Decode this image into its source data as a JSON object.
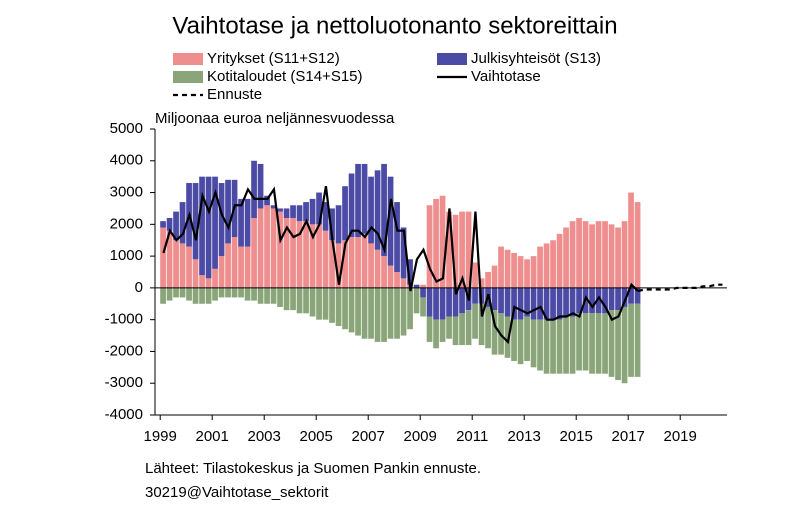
{
  "chart_data": {
    "type": "bar",
    "stacked": true,
    "title": "Vaihtotase ja nettoluotonanto sektoreittain",
    "y_label": "Miljoonaa  euroa  neljännesvuodessa",
    "source": "Lähteet: Tilastokeskus ja Suomen Pankin ennuste.",
    "code": "30219@Vaihtotase_sektorit",
    "xlim": [
      1998.8,
      2020.8
    ],
    "xticks": [
      1999,
      2001,
      2003,
      2005,
      2007,
      2009,
      2011,
      2013,
      2015,
      2017,
      2019
    ],
    "ylim": [
      -4000,
      5000
    ],
    "yticks": [
      -4000,
      -3000,
      -2000,
      -1000,
      0,
      1000,
      2000,
      3000,
      4000,
      5000
    ],
    "x": [
      1999,
      1999.25,
      1999.5,
      1999.75,
      2000,
      2000.25,
      2000.5,
      2000.75,
      2001,
      2001.25,
      2001.5,
      2001.75,
      2002,
      2002.25,
      2002.5,
      2002.75,
      2003,
      2003.25,
      2003.5,
      2003.75,
      2004,
      2004.25,
      2004.5,
      2004.75,
      2005,
      2005.25,
      2005.5,
      2005.75,
      2006,
      2006.25,
      2006.5,
      2006.75,
      2007,
      2007.25,
      2007.5,
      2007.75,
      2008,
      2008.25,
      2008.5,
      2008.75,
      2009,
      2009.25,
      2009.5,
      2009.75,
      2010,
      2010.25,
      2010.5,
      2010.75,
      2011,
      2011.25,
      2011.5,
      2011.75,
      2012,
      2012.25,
      2012.5,
      2012.75,
      2013,
      2013.25,
      2013.5,
      2013.75,
      2014,
      2014.25,
      2014.5,
      2014.75,
      2015,
      2015.25,
      2015.5,
      2015.75,
      2016,
      2016.25,
      2016.5,
      2016.75,
      2017,
      2017.25,
      2017.5,
      2017.75,
      2018,
      2018.25,
      2018.5,
      2018.75,
      2019,
      2019.25,
      2019.5,
      2019.75,
      2020,
      2020.25,
      2020.5
    ],
    "series": [
      {
        "name": "Yritykset (S11+S12)",
        "kind": "bar",
        "color": "#ef8e8e",
        "values": [
          1900,
          1800,
          1500,
          1400,
          1300,
          900,
          400,
          300,
          600,
          1000,
          1400,
          1600,
          1300,
          1300,
          2200,
          2500,
          2600,
          2500,
          2400,
          2200,
          2200,
          2100,
          2100,
          2000,
          2000,
          1800,
          1500,
          1400,
          1500,
          1600,
          1600,
          1700,
          1400,
          1200,
          1000,
          700,
          500,
          300,
          100,
          0,
          100,
          2600,
          2800,
          2900,
          2400,
          2300,
          2400,
          2400,
          800,
          300,
          500,
          700,
          1300,
          1200,
          1100,
          1000,
          900,
          1000,
          1300,
          1400,
          1500,
          1700,
          1900,
          2100,
          2200,
          2100,
          2000,
          2100,
          2100,
          2000,
          1900,
          2100,
          3000,
          2700,
          null,
          null,
          null,
          null,
          null,
          null,
          null,
          null,
          null,
          null,
          null,
          null,
          null
        ]
      },
      {
        "name": "Julkisyhteisöt (S13)",
        "kind": "bar",
        "color": "#4b4ba6",
        "values": [
          200,
          400,
          900,
          1300,
          2000,
          2400,
          3100,
          3200,
          2900,
          2300,
          2000,
          1800,
          1500,
          1500,
          1800,
          1400,
          300,
          100,
          100,
          300,
          400,
          500,
          600,
          800,
          1000,
          900,
          1000,
          1200,
          1700,
          2000,
          2300,
          2200,
          2100,
          2500,
          2900,
          2800,
          2200,
          1600,
          800,
          100,
          -300,
          -900,
          -1000,
          -1000,
          -900,
          -900,
          -800,
          -700,
          -500,
          -500,
          -600,
          -700,
          -800,
          -900,
          -1000,
          -1000,
          -900,
          -1000,
          -1000,
          -1000,
          -1000,
          -1000,
          -900,
          -900,
          -800,
          -800,
          -800,
          -800,
          -800,
          -700,
          -700,
          -600,
          -500,
          -500,
          null,
          null,
          null,
          null,
          null,
          null,
          null,
          null,
          null,
          null,
          null,
          null,
          null
        ]
      },
      {
        "name": "Kotitaloudet (S14+S15)",
        "kind": "bar",
        "color": "#8ba57a",
        "values": [
          -500,
          -400,
          -300,
          -300,
          -400,
          -500,
          -500,
          -500,
          -400,
          -300,
          -300,
          -300,
          -300,
          -400,
          -400,
          -500,
          -500,
          -500,
          -600,
          -700,
          -700,
          -800,
          -800,
          -900,
          -1000,
          -1000,
          -1100,
          -1200,
          -1300,
          -1400,
          -1500,
          -1600,
          -1600,
          -1700,
          -1700,
          -1600,
          -1600,
          -1500,
          -1300,
          -800,
          -600,
          -800,
          -900,
          -700,
          -700,
          -900,
          -1000,
          -1100,
          -1100,
          -1300,
          -1300,
          -1400,
          -1300,
          -1300,
          -1300,
          -1400,
          -1400,
          -1500,
          -1600,
          -1700,
          -1700,
          -1700,
          -1800,
          -1800,
          -1800,
          -1800,
          -1900,
          -1900,
          -1900,
          -2100,
          -2200,
          -2400,
          -2300,
          -2300,
          null,
          null,
          null,
          null,
          null,
          null,
          null,
          null,
          null,
          null,
          null,
          null,
          null
        ]
      },
      {
        "name": "Vaihtotase",
        "kind": "line",
        "color": "#000000",
        "values": [
          1100,
          1800,
          1500,
          1700,
          2300,
          1500,
          2900,
          2400,
          3000,
          2300,
          1900,
          2600,
          2600,
          3100,
          2800,
          2800,
          2800,
          3100,
          1500,
          1900,
          1600,
          1700,
          2100,
          1600,
          2000,
          3200,
          1500,
          100,
          1400,
          1800,
          1800,
          1600,
          1900,
          1700,
          1200,
          2800,
          1800,
          1800,
          -100,
          900,
          1200,
          600,
          200,
          300,
          2500,
          -200,
          300,
          -400,
          2400,
          -900,
          -200,
          -1200,
          -1500,
          -1700,
          -600,
          -700,
          -800,
          -700,
          -600,
          -1000,
          -1000,
          -900,
          -900,
          -800,
          -900,
          -300,
          -600,
          -300,
          -600,
          -1000,
          -900,
          -400,
          100,
          -100,
          null,
          null,
          null,
          null,
          null,
          null,
          null,
          null,
          null,
          null,
          null,
          null,
          null
        ]
      },
      {
        "name": "Ennuste",
        "kind": "line",
        "dashed": true,
        "color": "#000000",
        "values": [
          null,
          null,
          null,
          null,
          null,
          null,
          null,
          null,
          null,
          null,
          null,
          null,
          null,
          null,
          null,
          null,
          null,
          null,
          null,
          null,
          null,
          null,
          null,
          null,
          null,
          null,
          null,
          null,
          null,
          null,
          null,
          null,
          null,
          null,
          null,
          null,
          null,
          null,
          null,
          null,
          null,
          null,
          null,
          null,
          null,
          null,
          null,
          null,
          null,
          null,
          null,
          null,
          null,
          null,
          null,
          null,
          null,
          null,
          null,
          null,
          null,
          null,
          null,
          null,
          null,
          null,
          null,
          null,
          null,
          null,
          null,
          null,
          null,
          -100,
          -50,
          -50,
          -50,
          -50,
          -50,
          0,
          0,
          0,
          0,
          50,
          50,
          100,
          100
        ]
      }
    ]
  }
}
